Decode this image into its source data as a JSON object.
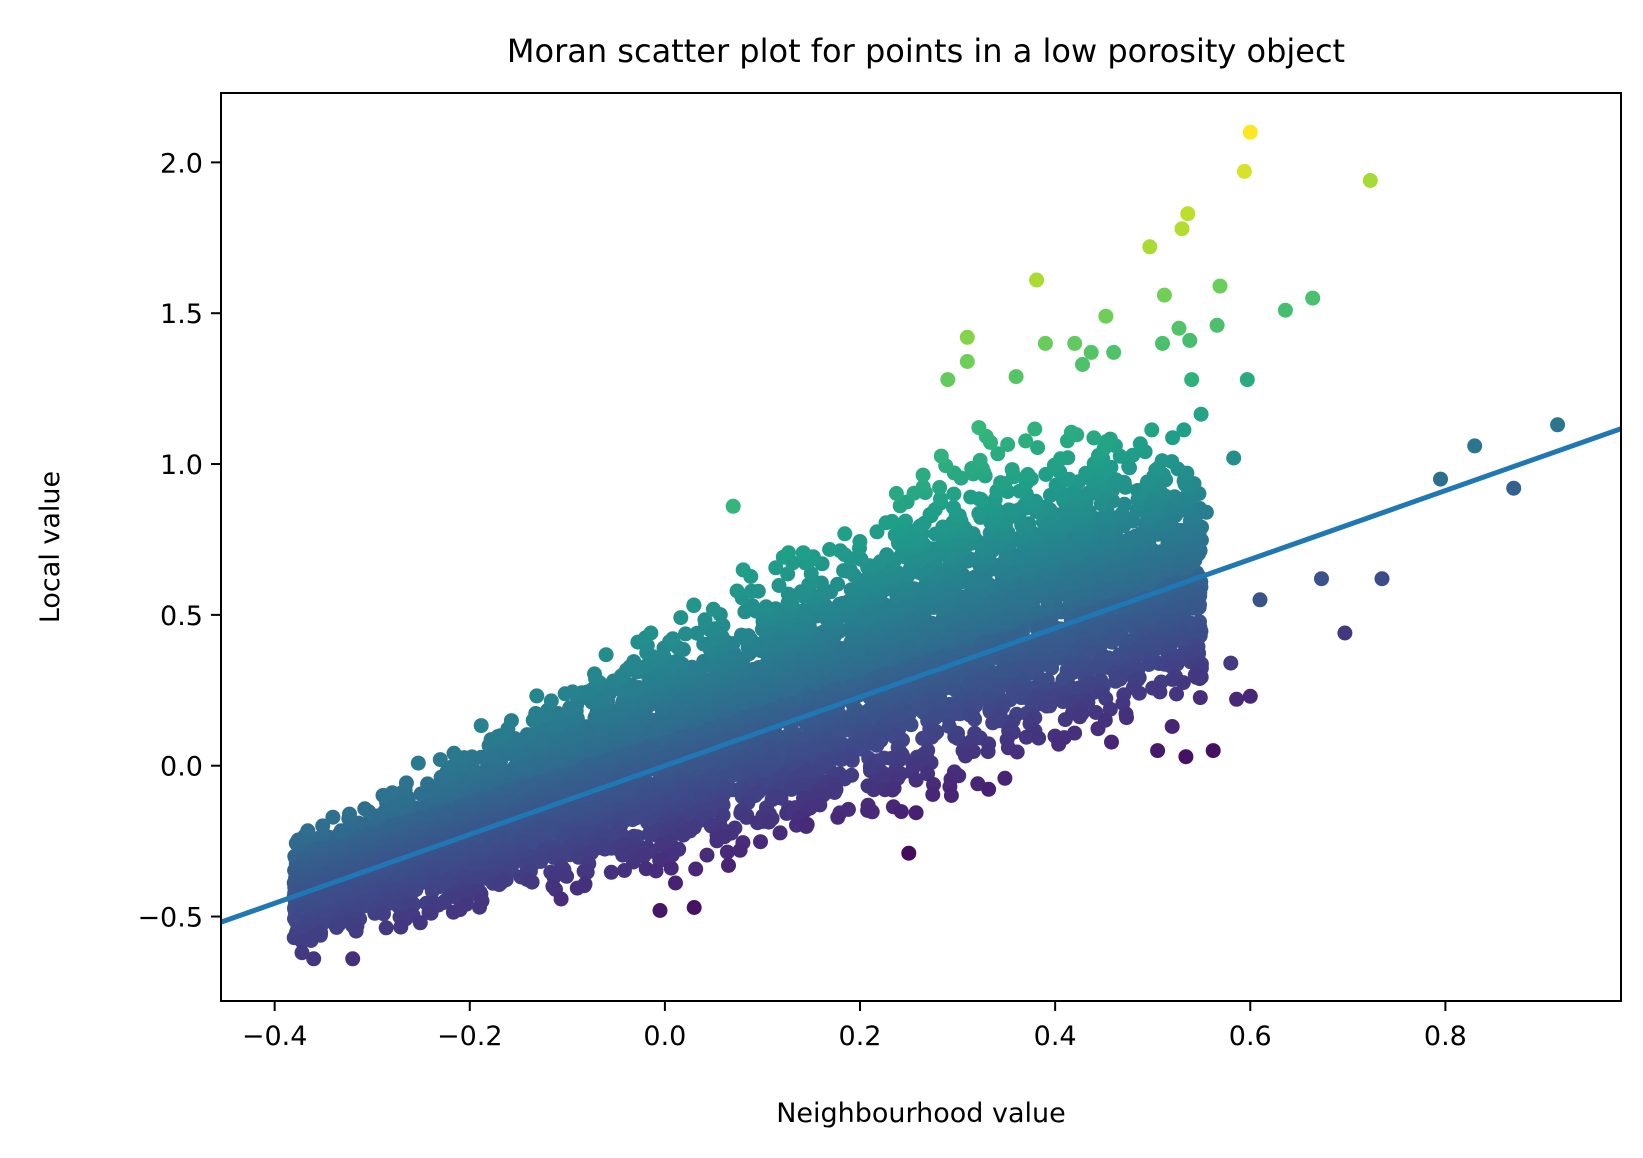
{
  "chart_data": {
    "type": "scatter",
    "title": "Moran scatter plot for points in a low porosity object",
    "xlabel": "Neighbourhood value",
    "ylabel": "Local value",
    "xlim": [
      -0.455,
      0.98
    ],
    "ylim": [
      -0.78,
      2.23
    ],
    "xticks": [
      -0.4,
      -0.2,
      0.0,
      0.2,
      0.4,
      0.6,
      0.8
    ],
    "xtick_labels": [
      "−0.4",
      "−0.2",
      "0.0",
      "0.2",
      "0.4",
      "0.6",
      "0.8"
    ],
    "yticks": [
      -0.5,
      0.0,
      0.5,
      1.0,
      1.5,
      2.0
    ],
    "ytick_labels": [
      "−0.5",
      "0.0",
      "0.5",
      "1.0",
      "1.5",
      "2.0"
    ],
    "colormap": "viridis",
    "color_encodes": "local - neighbourhood",
    "color_range": [
      -0.6,
      1.5
    ],
    "fit_line": {
      "slope": 1.14,
      "intercept": 0.0,
      "color": "#1f77b4"
    },
    "point_cloud": {
      "x_range": [
        -0.38,
        0.55
      ],
      "lower_envelope": [
        [
          -0.38,
          -0.63
        ],
        [
          -0.3,
          -0.58
        ],
        [
          -0.2,
          -0.53
        ],
        [
          -0.1,
          -0.47
        ],
        [
          0.0,
          -0.42
        ],
        [
          0.1,
          -0.37
        ],
        [
          0.2,
          -0.31
        ],
        [
          0.3,
          -0.22
        ],
        [
          0.4,
          -0.08
        ],
        [
          0.5,
          0.03
        ],
        [
          0.55,
          0.05
        ]
      ],
      "upper_envelope": [
        [
          -0.38,
          -0.2
        ],
        [
          -0.3,
          -0.08
        ],
        [
          -0.2,
          0.15
        ],
        [
          -0.1,
          0.33
        ],
        [
          0.0,
          0.55
        ],
        [
          0.1,
          0.75
        ],
        [
          0.2,
          0.95
        ],
        [
          0.3,
          1.15
        ],
        [
          0.4,
          1.2
        ],
        [
          0.5,
          1.22
        ],
        [
          0.55,
          1.25
        ]
      ],
      "approx_count": 6500
    },
    "points": [
      [
        0.6,
        2.1
      ],
      [
        0.594,
        1.97
      ],
      [
        0.723,
        1.94
      ],
      [
        0.536,
        1.83
      ],
      [
        0.53,
        1.78
      ],
      [
        0.497,
        1.72
      ],
      [
        0.381,
        1.61
      ],
      [
        0.569,
        1.59
      ],
      [
        0.664,
        1.55
      ],
      [
        0.512,
        1.56
      ],
      [
        0.636,
        1.51
      ],
      [
        0.452,
        1.49
      ],
      [
        0.566,
        1.46
      ],
      [
        0.527,
        1.45
      ],
      [
        0.31,
        1.42
      ],
      [
        0.39,
        1.4
      ],
      [
        0.42,
        1.4
      ],
      [
        0.51,
        1.4
      ],
      [
        0.538,
        1.41
      ],
      [
        0.437,
        1.37
      ],
      [
        0.46,
        1.37
      ],
      [
        0.31,
        1.34
      ],
      [
        0.428,
        1.33
      ],
      [
        0.597,
        1.28
      ],
      [
        0.54,
        1.28
      ],
      [
        0.36,
        1.29
      ],
      [
        0.29,
        1.28
      ],
      [
        0.915,
        1.13
      ],
      [
        0.83,
        1.06
      ],
      [
        0.583,
        1.02
      ],
      [
        0.795,
        0.95
      ],
      [
        0.87,
        0.92
      ],
      [
        0.535,
        0.97
      ],
      [
        0.555,
        0.84
      ],
      [
        0.07,
        0.86
      ],
      [
        0.54,
        0.73
      ],
      [
        0.545,
        0.64
      ],
      [
        0.61,
        0.55
      ],
      [
        0.673,
        0.62
      ],
      [
        0.735,
        0.62
      ],
      [
        0.697,
        0.44
      ],
      [
        0.58,
        0.34
      ],
      [
        0.6,
        0.23
      ],
      [
        0.586,
        0.22
      ],
      [
        0.52,
        0.13
      ],
      [
        0.562,
        0.05
      ],
      [
        0.534,
        0.03
      ],
      [
        0.505,
        0.05
      ],
      [
        -0.372,
        -0.62
      ],
      [
        -0.38,
        -0.57
      ],
      [
        -0.005,
        -0.48
      ],
      [
        0.03,
        -0.47
      ],
      [
        0.25,
        -0.29
      ],
      [
        -0.32,
        -0.64
      ],
      [
        -0.36,
        -0.64
      ]
    ]
  }
}
